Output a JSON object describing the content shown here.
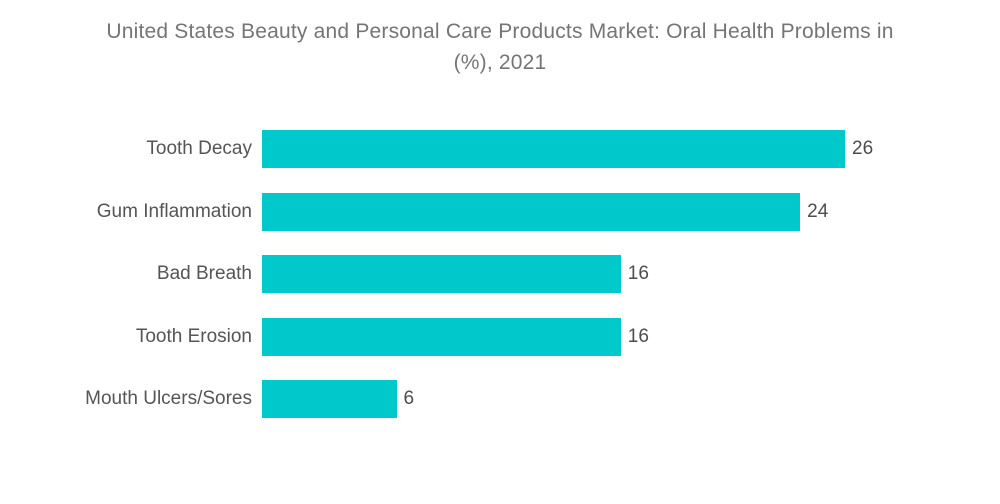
{
  "title_lines": [
    "United States Beauty and Personal Care Products Market: Oral Health Problems in",
    "(%), 2021"
  ],
  "chart_data": {
    "type": "bar",
    "orientation": "horizontal",
    "title": "United States Beauty and Personal Care Products Market: Oral Health Problems in (%), 2021",
    "categories": [
      "Tooth Decay",
      "Gum Inflammation",
      "Bad Breath",
      "Tooth Erosion",
      "Mouth Ulcers/Sores"
    ],
    "values": [
      26,
      24,
      16,
      16,
      6
    ],
    "value_labels": [
      "26",
      "24",
      "16",
      "16",
      "6"
    ],
    "xlabel": "",
    "ylabel": "",
    "xlim": [
      0,
      26
    ],
    "grid": false,
    "legend": false,
    "bar_color": "#00C8CB"
  },
  "colors": {
    "background": "#FFFFFF",
    "bar": "#00C8CB",
    "title_text": "#757575",
    "category_text": "#555555",
    "value_text": "#4d4d4d"
  }
}
